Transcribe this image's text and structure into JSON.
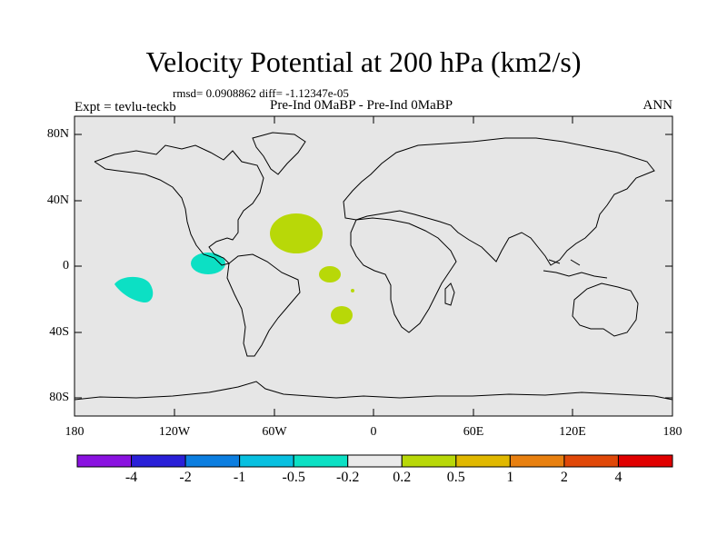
{
  "title": "Velocity Potential at 200 hPa (km2/s)",
  "stats": "rmsd= 0.0908862 diff= -1.12347e-05",
  "experiment": "Expt = tevlu-teckb",
  "comparison": "Pre-Ind 0MaBP - Pre-Ind 0MaBP",
  "season": "ANN",
  "lat_labels": [
    "80N",
    "40N",
    "0",
    "40S",
    "80S"
  ],
  "lon_labels": [
    "180",
    "120W",
    "60W",
    "0",
    "60E",
    "120E",
    "180"
  ],
  "colorbar": {
    "colors": [
      "#8a12e0",
      "#2a20d8",
      "#0c7ee0",
      "#08c0e0",
      "#0ce0c4",
      "#eaeaea",
      "#b8d808",
      "#e0b800",
      "#e88010",
      "#e04808",
      "#e00000"
    ],
    "labels": [
      "-4",
      "-2",
      "-1",
      "-0.5",
      "-0.2",
      "0.2",
      "0.5",
      "1",
      "2",
      "4"
    ]
  },
  "colors": {
    "ocean_background": "#e6e6e6",
    "coast": "#000000"
  }
}
